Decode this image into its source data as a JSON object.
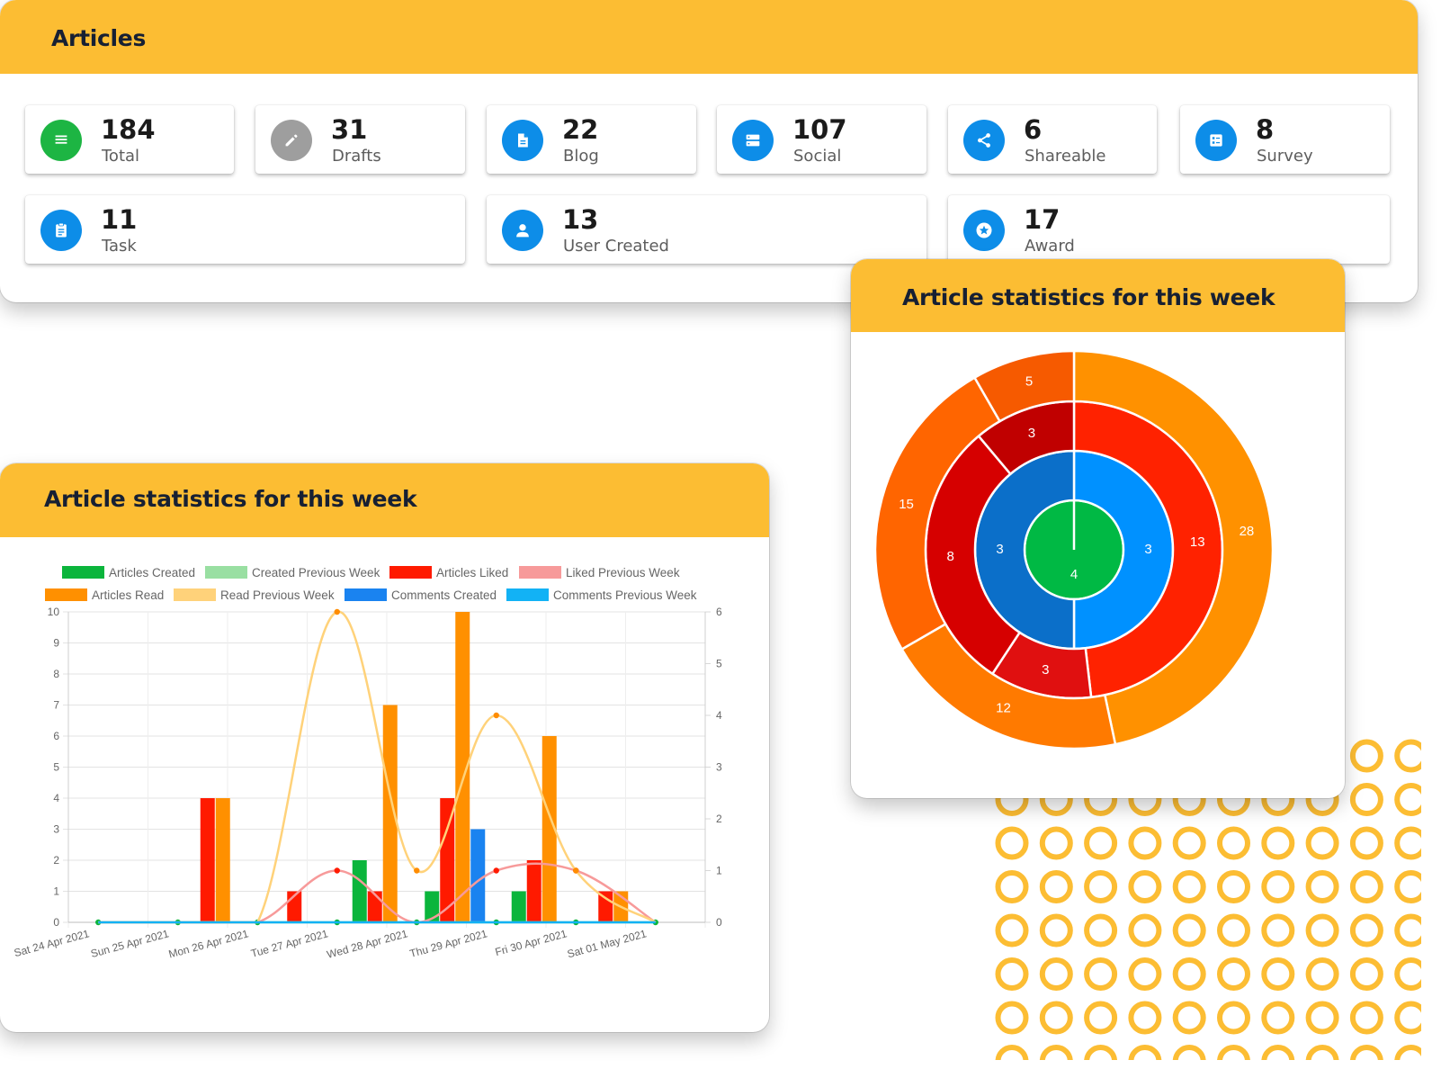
{
  "articles_card": {
    "title": "Articles",
    "stats": [
      {
        "value": "184",
        "label": "Total",
        "icon": "list-icon",
        "color": "#1db543"
      },
      {
        "value": "31",
        "label": "Drafts",
        "icon": "pencil-icon",
        "color": "#9e9e9e"
      },
      {
        "value": "22",
        "label": "Blog",
        "icon": "document-icon",
        "color": "#0d8de8"
      },
      {
        "value": "107",
        "label": "Social",
        "icon": "server-icon",
        "color": "#0d8de8"
      },
      {
        "value": "6",
        "label": "Shareable",
        "icon": "share-icon",
        "color": "#0d8de8"
      },
      {
        "value": "8",
        "label": "Survey",
        "icon": "form-icon",
        "color": "#0d8de8"
      },
      {
        "value": "11",
        "label": "Task",
        "icon": "clipboard-icon",
        "color": "#0d8de8"
      },
      {
        "value": "13",
        "label": "User Created",
        "icon": "user-icon",
        "color": "#0d8de8"
      },
      {
        "value": "17",
        "label": "Award",
        "icon": "star-badge-icon",
        "color": "#0d8de8"
      }
    ]
  },
  "bar_card": {
    "title": "Article statistics for this week"
  },
  "pie_card": {
    "title": "Article statistics for this week"
  },
  "chart_data": [
    {
      "type": "bar",
      "title": "",
      "legend_position": "top",
      "grid": true,
      "categories": [
        "Sat 24 Apr 2021",
        "Sun 25 Apr 2021",
        "Mon 26 Apr 2021",
        "Tue 27 Apr 2021",
        "Wed 28 Apr 2021",
        "Thu 29 Apr 2021",
        "Fri 30 Apr 2021",
        "Sat 01 May 2021"
      ],
      "ylim": [
        0,
        10
      ],
      "y2lim": [
        0,
        6
      ],
      "yticks": [
        0,
        1,
        2,
        3,
        4,
        5,
        6,
        7,
        8,
        9,
        10
      ],
      "y2ticks": [
        0,
        1,
        2,
        3,
        4,
        5,
        6
      ],
      "series": [
        {
          "name": "Articles Created",
          "kind": "bar",
          "axis": "left",
          "color": "#0bb53c",
          "values": [
            0,
            0,
            0,
            2,
            1,
            1,
            0,
            0
          ]
        },
        {
          "name": "Created Previous Week",
          "kind": "line",
          "axis": "right",
          "color": "#99dfa2",
          "values": [
            0,
            0,
            0,
            0,
            0,
            0,
            0,
            0
          ]
        },
        {
          "name": "Articles Liked",
          "kind": "bar",
          "axis": "left",
          "color": "#ff1a00",
          "values": [
            0,
            4,
            1,
            1,
            4,
            2,
            1,
            0
          ]
        },
        {
          "name": "Liked Previous Week",
          "kind": "line",
          "axis": "right",
          "color": "#f79a9a",
          "values": [
            0,
            0,
            0,
            1,
            0,
            1,
            1,
            0
          ]
        },
        {
          "name": "Articles Read",
          "kind": "bar",
          "axis": "left",
          "color": "#ff9000",
          "values": [
            0,
            4,
            0,
            7,
            10,
            6,
            1,
            0
          ]
        },
        {
          "name": "Read Previous Week",
          "kind": "line",
          "axis": "right",
          "color": "#ffd27a",
          "values": [
            0,
            0,
            0,
            6,
            1,
            4,
            1,
            0
          ]
        },
        {
          "name": "Comments Created",
          "kind": "bar",
          "axis": "left",
          "color": "#1a83f0",
          "values": [
            0,
            0,
            0,
            0,
            3,
            0,
            0,
            0
          ]
        },
        {
          "name": "Comments Previous Week",
          "kind": "line",
          "axis": "right",
          "color": "#12b2f5",
          "values": [
            0,
            0,
            0,
            0,
            0,
            0,
            0,
            0
          ]
        }
      ]
    },
    {
      "type": "pie",
      "subtype": "multi-level-donut",
      "title": "",
      "rings": [
        {
          "level": 1,
          "values": [
            4
          ],
          "colors": [
            "#00b944"
          ]
        },
        {
          "level": 2,
          "values": [
            3,
            3
          ],
          "colors": [
            "#0091ff",
            "#0b6fc9"
          ]
        },
        {
          "level": 3,
          "values": [
            13,
            3,
            8,
            3
          ],
          "colors": [
            "#ff2200",
            "#e01010",
            "#d60000",
            "#c00000"
          ]
        },
        {
          "level": 4,
          "values": [
            28,
            12,
            15,
            5
          ],
          "colors": [
            "#ff9100",
            "#ff7a00",
            "#ff6500",
            "#f65a00"
          ]
        }
      ]
    }
  ]
}
